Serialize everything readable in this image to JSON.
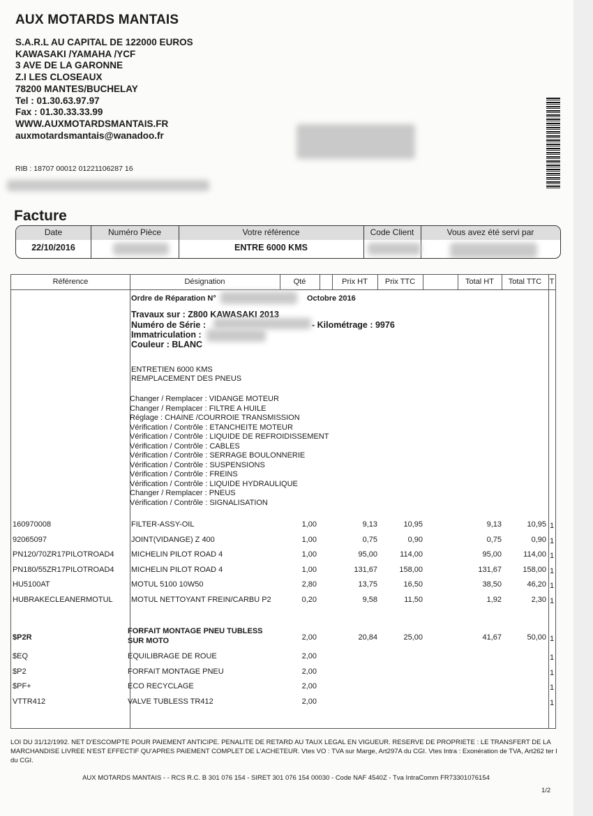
{
  "company": {
    "name": "AUX MOTARDS MANTAIS",
    "lines": [
      "S.A.R.L AU CAPITAL DE 122000 EUROS",
      "KAWASAKI /YAMAHA /YCF",
      "3 AVE DE LA GARONNE",
      "Z.I LES CLOSEAUX",
      "78200 MANTES/BUCHELAY",
      "Tel : 01.30.63.97.97",
      "Fax : 01.30.33.33.99",
      "WWW.AUXMOTARDSMANTAIS.FR",
      "auxmotardsmantais@wanadoo.fr"
    ],
    "rib": "RIB : 18707  00012   01221106287  16"
  },
  "title": "Facture",
  "header": {
    "date_label": "Date",
    "date": "22/10/2016",
    "piece_label": "Numéro Pièce",
    "ref_label": "Votre référence",
    "ref": "ENTRE 6000 KMS",
    "client_label": "Code Client",
    "servi_label": "Vous avez été servi par"
  },
  "table": {
    "columns": [
      "Référence",
      "Désignation",
      "Qté",
      "",
      "Prix HT",
      "Prix TTC",
      "",
      "Total HT",
      "Total TTC",
      "T"
    ],
    "order": {
      "label": "Ordre de Réparation N°",
      "month": "Octobre 2016"
    },
    "vehicle": {
      "travaux": "Travaux sur : Z800  KAWASAKI  2013",
      "serie": "Numéro de Série :",
      "km": "- Kilométrage : 9976",
      "immat": "Immatriculation :",
      "couleur": "Couleur : BLANC"
    },
    "work_title": [
      "ENTRETIEN 6000 KMS",
      "REMPLACEMENT DES PNEUS"
    ],
    "tasks": [
      "Changer / Remplacer : VIDANGE MOTEUR",
      "Changer / Remplacer : FILTRE A HUILE",
      "Réglage : CHAINE /COURROIE TRANSMISSION",
      "Vérification / Contrôle : ETANCHEITE MOTEUR",
      "Vérification / Contrôle : LIQUIDE DE REFROIDISSEMENT",
      "Vérification / Contrôle : CABLES",
      "Vérification / Contrôle : SERRAGE BOULONNERIE",
      "Vérification / Contrôle : SUSPENSIONS",
      "Vérification / Contrôle : FREINS",
      "Vérification / Contrôle : LIQUIDE HYDRAULIQUE",
      "Changer / Remplacer : PNEUS",
      "Vérification / Contrôle : SIGNALISATION"
    ],
    "items": [
      {
        "ref": "160970008",
        "des": "FILTER-ASSY-OIL",
        "qty": "1,00",
        "pht": "9,13",
        "pttc": "10,95",
        "tht": "9,13",
        "tttc": "10,95",
        "t": "1"
      },
      {
        "ref": "92065097",
        "des": "JOINT(VIDANGE) Z 400",
        "qty": "1,00",
        "pht": "0,75",
        "pttc": "0,90",
        "tht": "0,75",
        "tttc": "0,90",
        "t": "1"
      },
      {
        "ref": "PN120/70ZR17PILOTROAD4",
        "des": "MICHELIN PILOT ROAD 4",
        "qty": "1,00",
        "pht": "95,00",
        "pttc": "114,00",
        "tht": "95,00",
        "tttc": "114,00",
        "t": "1"
      },
      {
        "ref": "PN180/55ZR17PILOTROAD4",
        "des": "MICHELIN PILOT ROAD 4",
        "qty": "1,00",
        "pht": "131,67",
        "pttc": "158,00",
        "tht": "131,67",
        "tttc": "158,00",
        "t": "1"
      },
      {
        "ref": "HU5100AT",
        "des": "MOTUL 5100 10W50",
        "qty": "2,80",
        "pht": "13,75",
        "pttc": "16,50",
        "tht": "38,50",
        "tttc": "46,20",
        "t": "1"
      },
      {
        "ref": "HUBRAKECLEANERMOTUL",
        "des": "MOTUL NETTOYANT FREIN/CARBU P2",
        "qty": "0,20",
        "pht": "9,58",
        "pttc": "11,50",
        "tht": "1,92",
        "tttc": "2,30",
        "t": "1"
      }
    ],
    "package": {
      "ref": "$P2R",
      "des1": "FORFAIT MONTAGE PNEU TUBLESS",
      "des2": "SUR MOTO",
      "qty": "2,00",
      "pht": "20,84",
      "pttc": "25,00",
      "tht": "41,67",
      "tttc": "50,00",
      "t": "1"
    },
    "sub_items": [
      {
        "ref": "$EQ",
        "des": "EQUILIBRAGE DE ROUE",
        "qty": "2,00",
        "t": "1"
      },
      {
        "ref": "$P2",
        "des": "FORFAIT MONTAGE PNEU",
        "qty": "2,00",
        "t": "1"
      },
      {
        "ref": "$PF+",
        "des": "ECO RECYCLAGE",
        "qty": "2,00",
        "t": "1"
      },
      {
        "ref": "VTTR412",
        "des": "VALVE TUBLESS TR412",
        "qty": "2,00",
        "t": "1"
      }
    ]
  },
  "legal": "LOI DU 31/12/1992. NET D'ESCOMPTE POUR PAIEMENT ANTICIPE. PENALITE DE RETARD AU TAUX LEGAL EN VIGUEUR.       RESERVE DE PROPRIETE : LE TRANSFERT DE LA MARCHANDISE LIVREE N'EST EFFECTIF QU'APRES PAIEMENT COMPLET DE      L'ACHETEUR. Vtes VO : TVA sur Marge, Art297A du CGI. Vtes Intra : Exonération de TVA, Art262 ter I du CGI.",
  "footer": "AUX MOTARDS MANTAIS -  - RCS R.C. B 301 076 154 - SIRET 301 076 154 00030 - Code NAF 4540Z - Tva IntraComm FR73301076154",
  "page": "1/2"
}
